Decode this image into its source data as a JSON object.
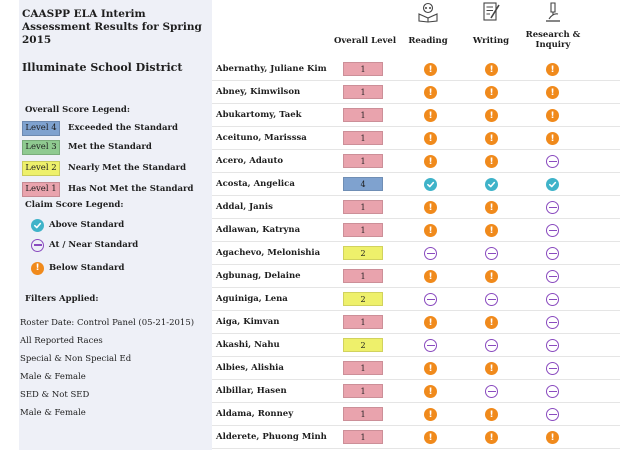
{
  "report_title": "CAASPP ELA Interim Assessment Results for Spring 2015",
  "district": "Illuminate School District",
  "overall_legend": {
    "title": "Overall Score Legend:",
    "items": [
      {
        "level": "Level 4",
        "label": "Exceeded the Standard",
        "color": "#7fa2cf"
      },
      {
        "level": "Level 3",
        "label": "Met the Standard",
        "color": "#8fca90"
      },
      {
        "level": "Level 2",
        "label": "Nearly Met the Standard",
        "color": "#eef06b"
      },
      {
        "level": "Level 1",
        "label": "Has Not Met the Standard",
        "color": "#e9a3ad"
      }
    ]
  },
  "claim_legend": {
    "title": "Claim Score Legend:",
    "items": [
      {
        "icon": "above",
        "label": "Above Standard"
      },
      {
        "icon": "near",
        "label": "At / Near Standard"
      },
      {
        "icon": "below",
        "label": "Below Standard"
      }
    ]
  },
  "filters": {
    "title": "Filters Applied:",
    "items": [
      "Roster Date: Control Panel (05-21-2015)",
      "All Reported Races",
      "Special & Non Special Ed",
      "Male & Female",
      "SED & Not SED",
      "Male & Female"
    ]
  },
  "columns": {
    "overall": "Overall Level",
    "reading": "Reading",
    "writing": "Writing",
    "research": "Research & Inquiry"
  },
  "level_colors": {
    "1": "#e9a3ad",
    "2": "#eef06b",
    "3": "#8fca90",
    "4": "#7fa2cf"
  },
  "students": [
    {
      "name": "Abernathy, Juliane Kim",
      "level": "1",
      "reading": "below",
      "writing": "below",
      "research": "below"
    },
    {
      "name": "Abney, Kimwilson",
      "level": "1",
      "reading": "below",
      "writing": "below",
      "research": "below"
    },
    {
      "name": "Abukartomy, Taek",
      "level": "1",
      "reading": "below",
      "writing": "below",
      "research": "below"
    },
    {
      "name": "Aceituno, Marisssa",
      "level": "1",
      "reading": "below",
      "writing": "below",
      "research": "below"
    },
    {
      "name": "Acero, Adauto",
      "level": "1",
      "reading": "below",
      "writing": "below",
      "research": "near"
    },
    {
      "name": "Acosta, Angelica",
      "level": "4",
      "reading": "above",
      "writing": "above",
      "research": "above"
    },
    {
      "name": "Addal, Janis",
      "level": "1",
      "reading": "below",
      "writing": "below",
      "research": "near"
    },
    {
      "name": "Adlawan, Katryna",
      "level": "1",
      "reading": "below",
      "writing": "below",
      "research": "near"
    },
    {
      "name": "Agachevo, Melonishia",
      "level": "2",
      "reading": "near",
      "writing": "near",
      "research": "near"
    },
    {
      "name": "Agbunag, Delaine",
      "level": "1",
      "reading": "below",
      "writing": "below",
      "research": "near"
    },
    {
      "name": "Aguiniga, Lena",
      "level": "2",
      "reading": "near",
      "writing": "near",
      "research": "near"
    },
    {
      "name": "Aiga, Kimvan",
      "level": "1",
      "reading": "below",
      "writing": "below",
      "research": "near"
    },
    {
      "name": "Akashi, Nahu",
      "level": "2",
      "reading": "near",
      "writing": "near",
      "research": "near"
    },
    {
      "name": "Albies, Alishia",
      "level": "1",
      "reading": "below",
      "writing": "below",
      "research": "near"
    },
    {
      "name": "Albillar, Hasen",
      "level": "1",
      "reading": "below",
      "writing": "near",
      "research": "near"
    },
    {
      "name": "Aldama, Ronney",
      "level": "1",
      "reading": "below",
      "writing": "below",
      "research": "near"
    },
    {
      "name": "Alderete, Phuong Minh",
      "level": "1",
      "reading": "below",
      "writing": "below",
      "research": "below"
    }
  ]
}
